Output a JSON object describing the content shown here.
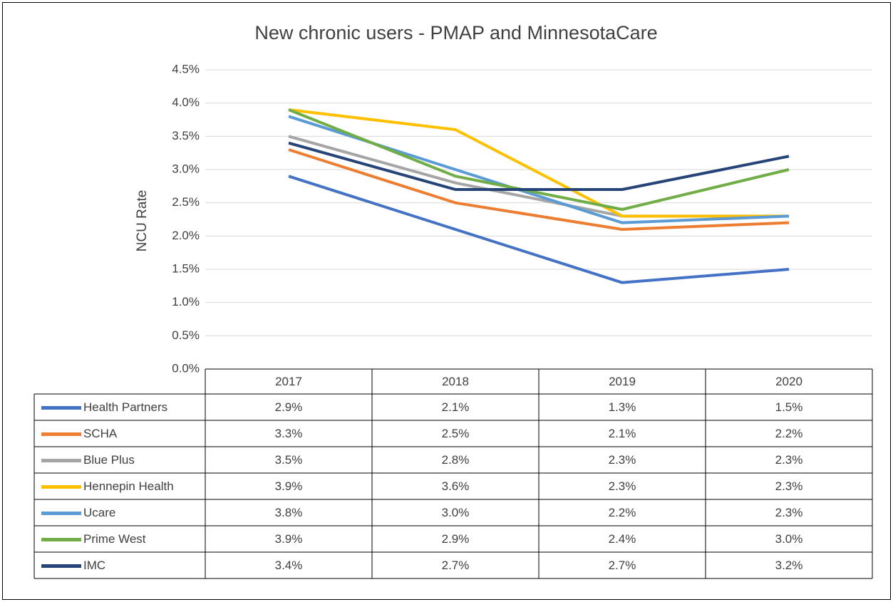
{
  "chart_data": {
    "type": "line",
    "title": "New chronic users - PMAP and MinnesotaCare",
    "y_label": "NCU Rate",
    "categories": [
      "2017",
      "2018",
      "2019",
      "2020"
    ],
    "ylim": [
      0,
      4.5
    ],
    "yticks": [
      {
        "value": 0,
        "label": "0.0%"
      },
      {
        "value": 0.5,
        "label": "0.5%"
      },
      {
        "value": 1,
        "label": "1.0%"
      },
      {
        "value": 1.5,
        "label": "1.5%"
      },
      {
        "value": 2,
        "label": "2.0%"
      },
      {
        "value": 2.5,
        "label": "2.5%"
      },
      {
        "value": 3,
        "label": "3.0%"
      },
      {
        "value": 3.5,
        "label": "3.5%"
      },
      {
        "value": 4,
        "label": "4.0%"
      },
      {
        "value": 4.5,
        "label": "4.5%"
      }
    ],
    "grid": true,
    "series": [
      {
        "name": "Health Partners",
        "color": "#4472c4",
        "values": [
          2.9,
          2.1,
          1.3,
          1.5
        ],
        "value_labels": [
          "2.9%",
          "2.1%",
          "1.3%",
          "1.5%"
        ]
      },
      {
        "name": "SCHA",
        "color": "#ed7d31",
        "values": [
          3.3,
          2.5,
          2.1,
          2.2
        ],
        "value_labels": [
          "3.3%",
          "2.5%",
          "2.1%",
          "2.2%"
        ]
      },
      {
        "name": "Blue Plus",
        "color": "#a5a5a5",
        "values": [
          3.5,
          2.8,
          2.3,
          2.3
        ],
        "value_labels": [
          "3.5%",
          "2.8%",
          "2.3%",
          "2.3%"
        ]
      },
      {
        "name": "Hennepin Health",
        "color": "#ffc000",
        "values": [
          3.9,
          3.6,
          2.3,
          2.3
        ],
        "value_labels": [
          "3.9%",
          "3.6%",
          "2.3%",
          "2.3%"
        ]
      },
      {
        "name": "Ucare",
        "color": "#5b9bd5",
        "values": [
          3.8,
          3.0,
          2.2,
          2.3
        ],
        "value_labels": [
          "3.8%",
          "3.0%",
          "2.2%",
          "2.3%"
        ]
      },
      {
        "name": "Prime West",
        "color": "#70ad47",
        "values": [
          3.9,
          2.9,
          2.4,
          3.0
        ],
        "value_labels": [
          "3.9%",
          "2.9%",
          "2.4%",
          "3.0%"
        ]
      },
      {
        "name": "IMC",
        "color": "#264478",
        "values": [
          3.4,
          2.7,
          2.7,
          3.2
        ],
        "value_labels": [
          "3.4%",
          "2.7%",
          "2.7%",
          "3.2%"
        ]
      }
    ]
  }
}
